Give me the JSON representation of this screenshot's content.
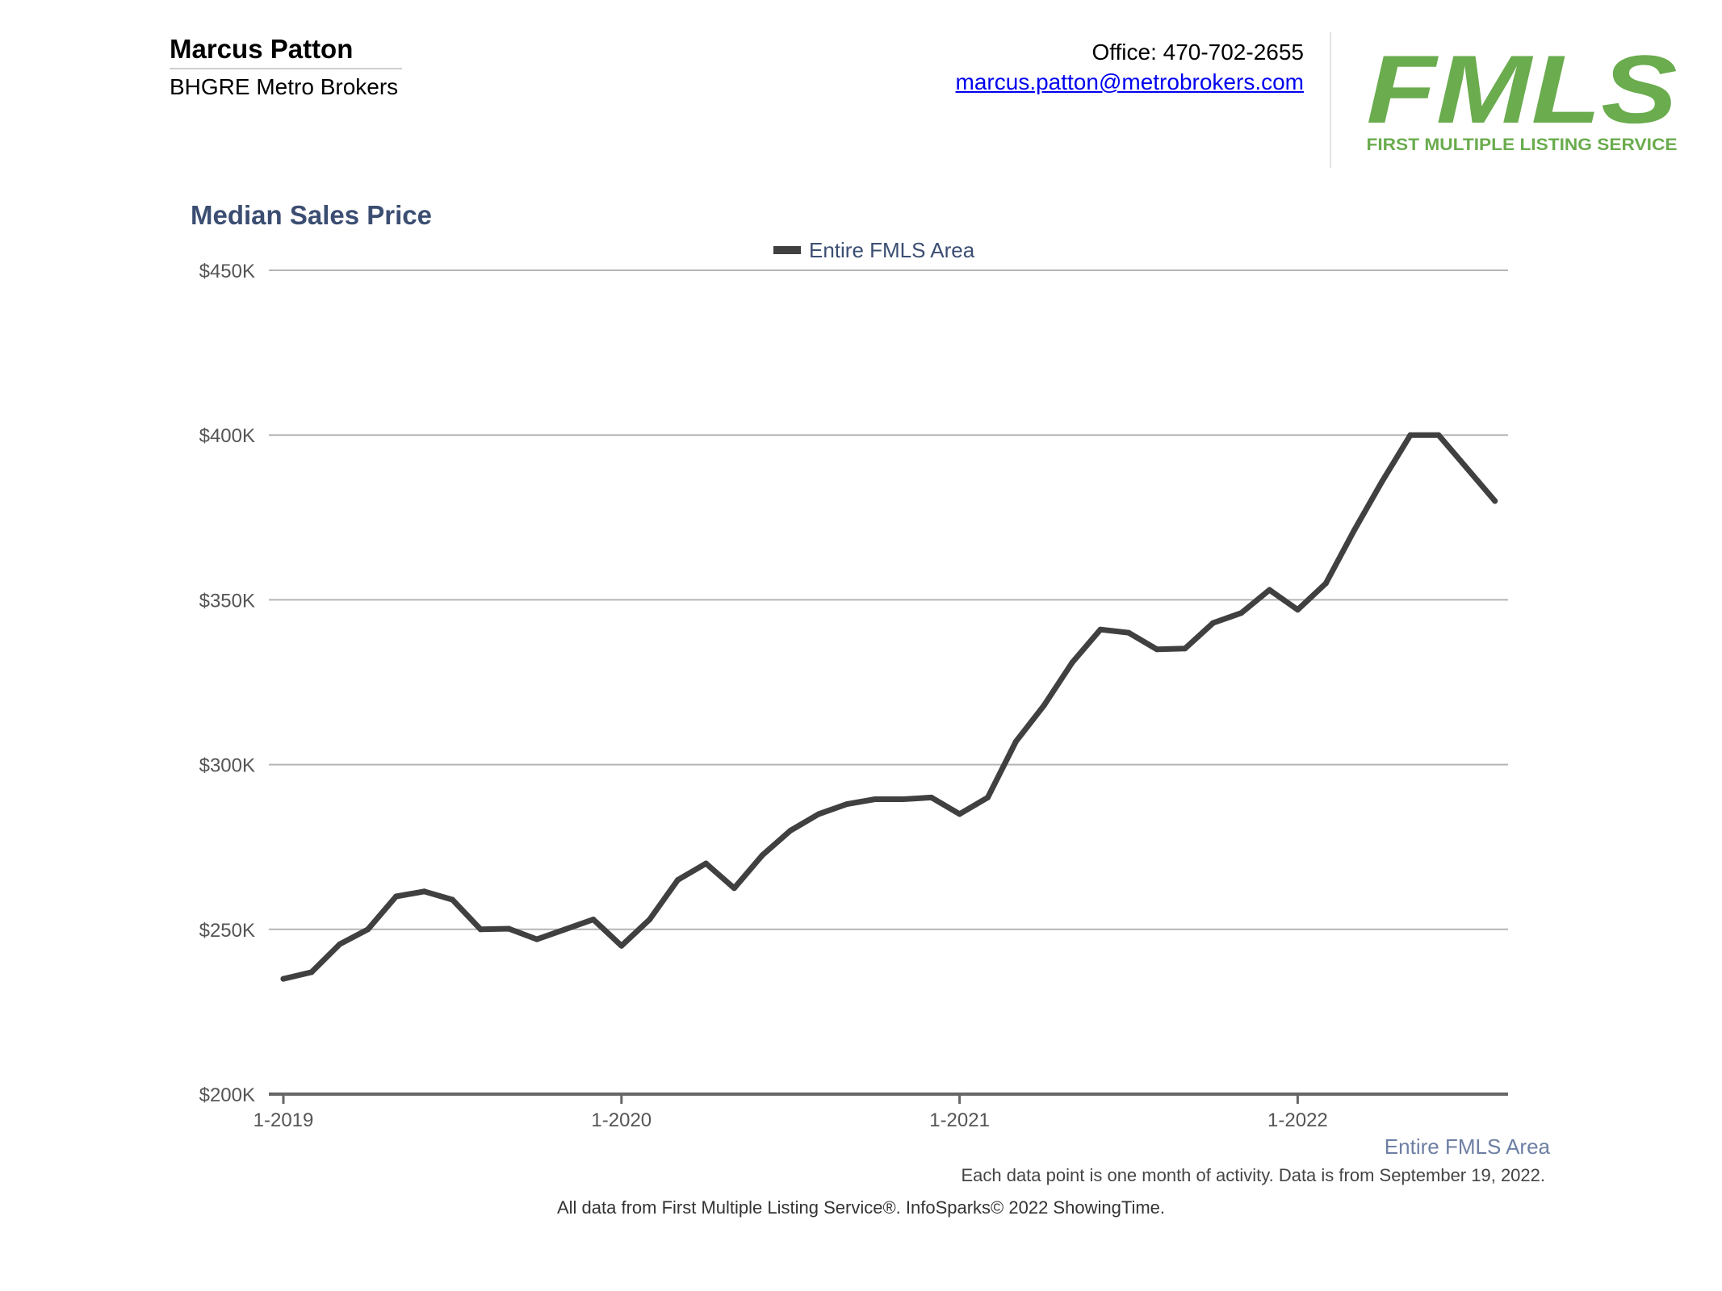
{
  "header": {
    "agent_name": "Marcus Patton",
    "company": "BHGRE Metro Brokers",
    "office": "Office: 470-702-2655",
    "email": "marcus.patton@metrobrokers.com"
  },
  "logo": {
    "wordmark": "FMLS",
    "tagline": "FIRST MULTIPLE LISTING SERVICE",
    "color": "#6aac4e"
  },
  "colors": {
    "title": "#3b4e72",
    "line": "#404040",
    "grid": "#b5b5b5",
    "axis": "#666666"
  },
  "chart_data": {
    "type": "line",
    "title": "Median Sales Price",
    "legend": [
      "Entire FMLS Area"
    ],
    "legend_placement": "top-center",
    "series_label": "Entire FMLS Area",
    "grid": true,
    "ylim": [
      200000,
      450000
    ],
    "y_ticks": [
      200000,
      250000,
      300000,
      350000,
      400000,
      450000
    ],
    "y_tick_labels": [
      "$200K",
      "$250K",
      "$300K",
      "$350K",
      "$400K",
      "$450K"
    ],
    "x_tick_labels": [
      "1-2019",
      "1-2020",
      "1-2021",
      "1-2022"
    ],
    "x": [
      "2019-01",
      "2019-02",
      "2019-03",
      "2019-04",
      "2019-05",
      "2019-06",
      "2019-07",
      "2019-08",
      "2019-09",
      "2019-10",
      "2019-11",
      "2019-12",
      "2020-01",
      "2020-02",
      "2020-03",
      "2020-04",
      "2020-05",
      "2020-06",
      "2020-07",
      "2020-08",
      "2020-09",
      "2020-10",
      "2020-11",
      "2020-12",
      "2021-01",
      "2021-02",
      "2021-03",
      "2021-04",
      "2021-05",
      "2021-06",
      "2021-07",
      "2021-08",
      "2021-09",
      "2021-10",
      "2021-11",
      "2021-12",
      "2022-01",
      "2022-02",
      "2022-03",
      "2022-04",
      "2022-05",
      "2022-06",
      "2022-07",
      "2022-08"
    ],
    "series": [
      {
        "name": "Entire FMLS Area",
        "values": [
          235000,
          237000,
          245500,
          250000,
          260000,
          261500,
          259000,
          250000,
          250200,
          247000,
          250000,
          253000,
          245000,
          253000,
          265000,
          270000,
          262500,
          272500,
          280000,
          285000,
          288000,
          289500,
          289500,
          290000,
          285000,
          290000,
          307000,
          318000,
          331000,
          341000,
          340000,
          335000,
          335200,
          343000,
          346000,
          353000,
          347000,
          355000,
          371000,
          386000,
          400000,
          400000,
          390000,
          380000
        ]
      }
    ]
  },
  "footer": {
    "note": "Each data point is one month of activity. Data is from September 19, 2022.",
    "source": "All data from First Multiple Listing Service®. InfoSparks© 2022 ShowingTime."
  }
}
